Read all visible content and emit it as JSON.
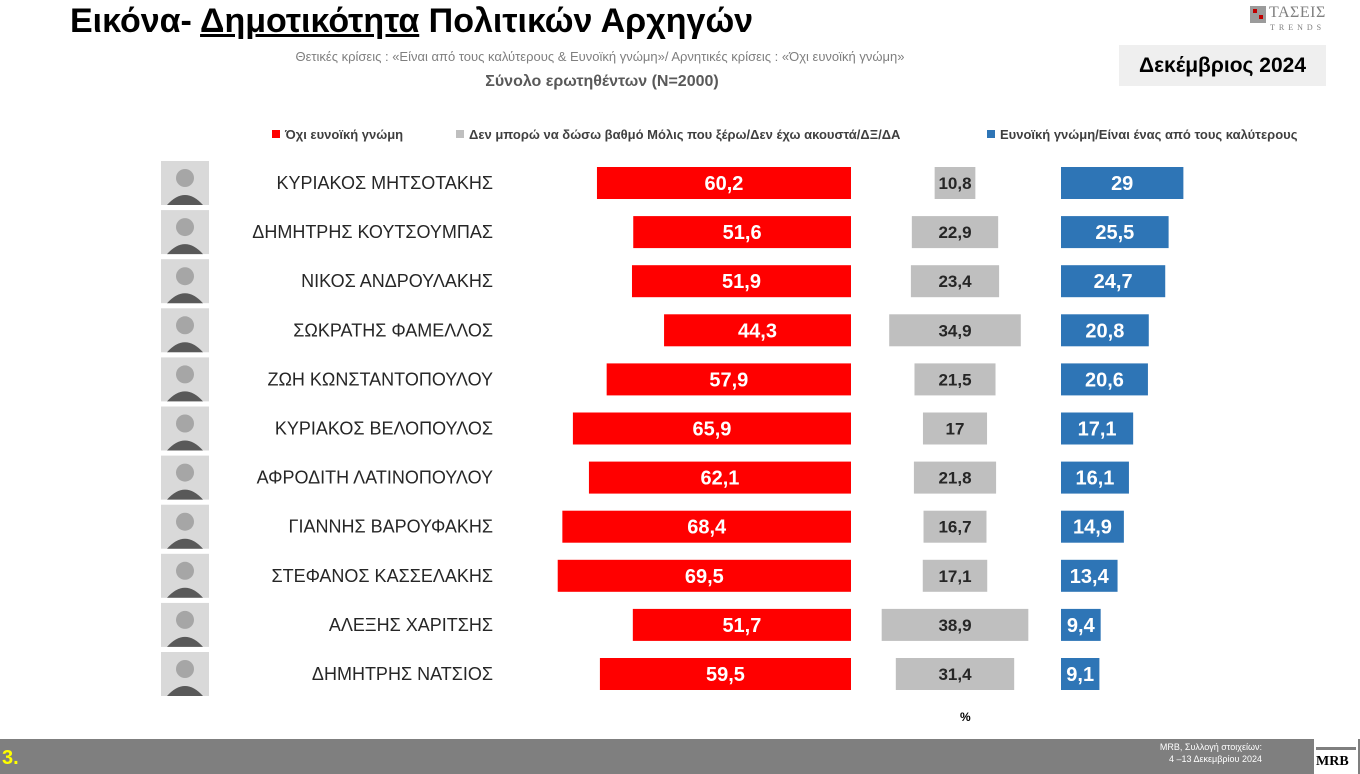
{
  "header": {
    "title_prefix": "Εικόνα- ",
    "title_underlined": "Δημοτικότητα",
    "title_suffix": " Πολιτικών Αρχηγών",
    "subtitle": "Θετικές κρίσεις : «Είναι από τους καλύτερους & Ευνοϊκή γνώμη»/ Αρνητικές κρίσεις : «Όχι ευνοϊκή γνώμη»",
    "sample": "Σύνολο ερωτηθέντων (N=2000)",
    "date": "Δεκέμβριος 2024"
  },
  "brand": {
    "name": "ΤΑΣΕΙΣ",
    "sub": "TRENDS"
  },
  "colors": {
    "negative": "#ff0000",
    "neutral": "#bfbfbf",
    "positive": "#2e75b6"
  },
  "chart_data": {
    "type": "bar",
    "orientation": "horizontal",
    "unit": "%",
    "categories": [
      "ΚΥΡΙΑΚΟΣ ΜΗΤΣΟΤΑΚΗΣ",
      "ΔΗΜΗΤΡΗΣ ΚΟΥΤΣΟΥΜΠΑΣ",
      "ΝΙΚΟΣ ΑΝΔΡΟΥΛΑΚΗΣ",
      "ΣΩΚΡΑΤΗΣ ΦΑΜΕΛΛΟΣ",
      "ΖΩΗ ΚΩΝΣΤΑΝΤΟΠΟΥΛΟΥ",
      "ΚΥΡΙΑΚΟΣ ΒΕΛΟΠΟΥΛΟΣ",
      "ΑΦΡΟΔΙΤΗ ΛΑΤΙΝΟΠΟΥΛΟΥ",
      "ΓΙΑΝΝΗΣ ΒΑΡΟΥΦΑΚΗΣ",
      "ΣΤΕΦΑΝΟΣ ΚΑΣΣΕΛΑΚΗΣ",
      "ΑΛΕΞΗΣ ΧΑΡΙΤΣΗΣ",
      "ΔΗΜΗΤΡΗΣ ΝΑΤΣΙΟΣ"
    ],
    "series": [
      {
        "name": "Όχι ευνοϊκή γνώμη",
        "labels": [
          "60,2",
          "51,6",
          "51,9",
          "44,3",
          "57,9",
          "65,9",
          "62,1",
          "68,4",
          "69,5",
          "51,7",
          "59,5"
        ],
        "values": [
          60.2,
          51.6,
          51.9,
          44.3,
          57.9,
          65.9,
          62.1,
          68.4,
          69.5,
          51.7,
          59.5
        ]
      },
      {
        "name": "Δεν μπορώ να δώσω βαθμό Μόλις που ξέρω/Δεν έχω ακουστά/ΔΞ/ΔΑ",
        "labels": [
          "10,8",
          "22,9",
          "23,4",
          "34,9",
          "21,5",
          "17",
          "21,8",
          "16,7",
          "17,1",
          "38,9",
          "31,4"
        ],
        "values": [
          10.8,
          22.9,
          23.4,
          34.9,
          21.5,
          17,
          21.8,
          16.7,
          17.1,
          38.9,
          31.4
        ]
      },
      {
        "name": "Ευνοϊκή γνώμη/Είναι ένας από τους καλύτερους",
        "labels": [
          "29",
          "25,5",
          "24,7",
          "20,8",
          "20,6",
          "17,1",
          "16,1",
          "14,9",
          "13,4",
          "9,4",
          "9,1"
        ],
        "values": [
          29,
          25.5,
          24.7,
          20.8,
          20.6,
          17.1,
          16.1,
          14.9,
          13.4,
          9.4,
          9.1
        ]
      }
    ],
    "legend_position": "top",
    "grid": false
  },
  "footer": {
    "page_number": "3.",
    "source": "MRB, Συλλογή στοιχείων:\n4 –13 Δεκεμβρίου 2024",
    "logo": "MRB"
  }
}
